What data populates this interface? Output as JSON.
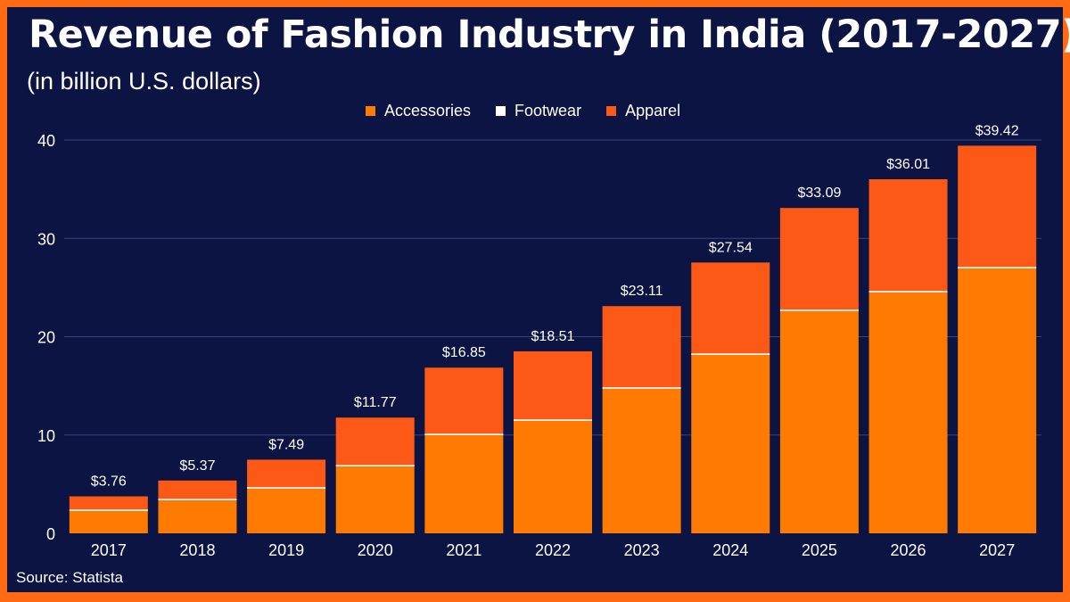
{
  "title": "Revenue of Fashion Industry in India (2017-2027)",
  "subtitle": "(in billion U.S. dollars)",
  "source": "Source: Statista",
  "colors": {
    "background": "#0B1443",
    "border": "#FF6A13",
    "Accessories": "#FF7A00",
    "Footwear": "#FFFFFF",
    "Apparel": "#FC5916"
  },
  "chart_data": {
    "type": "bar",
    "stacked": true,
    "categories": [
      "2017",
      "2018",
      "2019",
      "2020",
      "2021",
      "2022",
      "2023",
      "2024",
      "2025",
      "2026",
      "2027"
    ],
    "series": [
      {
        "name": "Accessories",
        "values": [
          2.27,
          3.36,
          4.54,
          6.8,
          9.98,
          11.43,
          14.7,
          18.14,
          22.6,
          24.5,
          26.94
        ]
      },
      {
        "name": "Footwear",
        "values": [
          0.15,
          0.15,
          0.15,
          0.15,
          0.15,
          0.15,
          0.15,
          0.15,
          0.15,
          0.15,
          0.15
        ]
      },
      {
        "name": "Apparel",
        "values": [
          1.34,
          1.86,
          2.8,
          4.82,
          6.72,
          6.93,
          8.26,
          9.25,
          10.34,
          11.36,
          12.33
        ]
      }
    ],
    "totals": [
      3.76,
      5.37,
      7.49,
      11.77,
      16.85,
      18.51,
      23.11,
      27.54,
      33.09,
      36.01,
      39.42
    ],
    "data_labels": [
      "$3.76",
      "$5.37",
      "$7.49",
      "$11.77",
      "$16.85",
      "$18.51",
      "$23.11",
      "$27.54",
      "$33.09",
      "$36.01",
      "$39.42"
    ],
    "yticks": [
      0,
      10,
      20,
      30,
      40
    ],
    "ylim": [
      0,
      40
    ],
    "grid": true,
    "legend_position": "top-center"
  }
}
